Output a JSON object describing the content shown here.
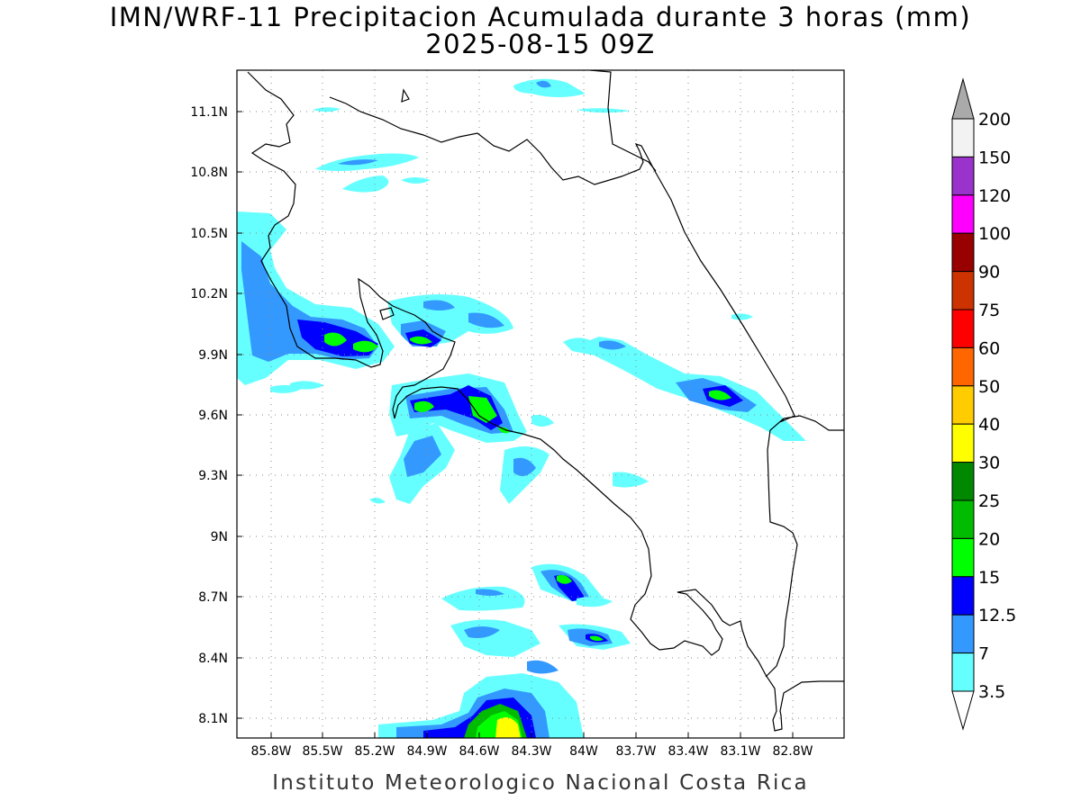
{
  "title": {
    "line1": "IMN/WRF-11 Precipitacion Acumulada durante 3 horas (mm)",
    "line2": "2025-08-15 09Z"
  },
  "credit": "Instituto Meteorologico Nacional Costa Rica",
  "map": {
    "lon_labels": [
      "85.8W",
      "85.5W",
      "85.2W",
      "84.9W",
      "84.6W",
      "84.3W",
      "84W",
      "83.7W",
      "83.4W",
      "83.1W",
      "82.8W"
    ],
    "lat_labels": [
      "11.1N",
      "10.8N",
      "10.5N",
      "10.2N",
      "9.9N",
      "9.6N",
      "9.3N",
      "9N",
      "8.7N",
      "8.4N",
      "8.1N"
    ]
  },
  "colorbar": {
    "labels": [
      "200",
      "150",
      "120",
      "100",
      "90",
      "75",
      "60",
      "50",
      "40",
      "30",
      "25",
      "20",
      "15",
      "12.5",
      "7",
      "3.5"
    ],
    "colors": [
      "#f2f2f2",
      "#9933cc",
      "#ff00ff",
      "#990000",
      "#cc3300",
      "#ff0000",
      "#ff6600",
      "#ffcc00",
      "#ffff00",
      "#008800",
      "#00bb00",
      "#00ff00",
      "#0000ff",
      "#3399ff",
      "#66ffff"
    ],
    "top_arrow_color": "#aaaaaa"
  },
  "colors": {
    "cyan": "#66ffff",
    "light_blue": "#3399ff",
    "blue": "#0000ff",
    "green": "#00ff00",
    "green_mid": "#00bb00",
    "yellow": "#ffff00",
    "coast": "#000000",
    "grid": "#888888"
  }
}
